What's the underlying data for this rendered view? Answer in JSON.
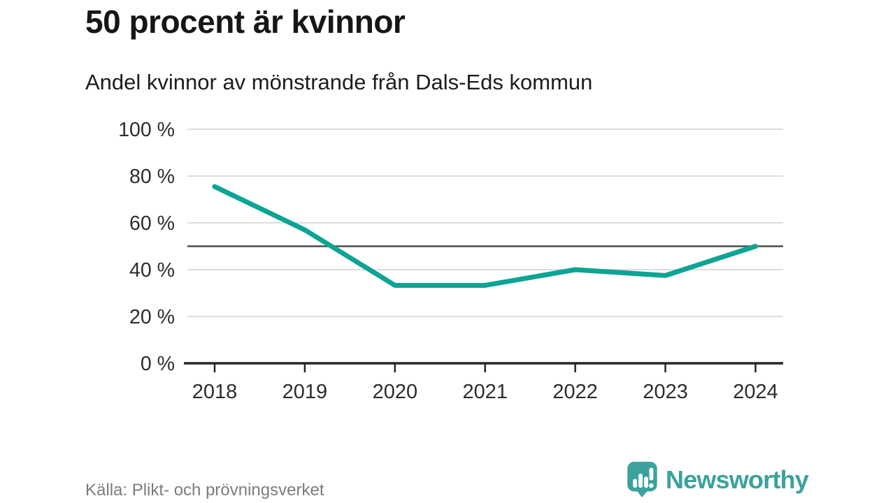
{
  "header": {
    "title": "50 procent är kvinnor",
    "subtitle": "Andel kvinnor av mönstrande från Dals-Eds kommun"
  },
  "footer": {
    "source": "Källa: Plikt- och prövningsverket",
    "logo_text": "Newsworthy"
  },
  "colors": {
    "line": "#0ca494",
    "grid": "#dcdcdd",
    "reference_line": "#4d4d4d",
    "axis": "#262626",
    "tick_label": "#2d2d2d",
    "source_text": "#7c7c7c",
    "brand": "#3ba39b"
  },
  "chart_data": {
    "type": "line",
    "title": "50 procent är kvinnor",
    "subtitle": "Andel kvinnor av mönstrande från Dals-Eds kommun",
    "source": "Källa: Plikt- och prövningsverket",
    "categories": [
      "2018",
      "2019",
      "2020",
      "2021",
      "2022",
      "2023",
      "2024"
    ],
    "series": [
      {
        "name": "Andel kvinnor av mönstrande",
        "values": [
          75.5,
          57,
          33.3,
          33.3,
          40,
          37.5,
          50
        ]
      }
    ],
    "ylim": [
      0,
      100
    ],
    "yticks": [
      0,
      20,
      40,
      60,
      80,
      100
    ],
    "ytick_suffix": " %",
    "reference_line": 50,
    "grid": "horizontal",
    "legend": "none",
    "xlabel": "",
    "ylabel": ""
  }
}
